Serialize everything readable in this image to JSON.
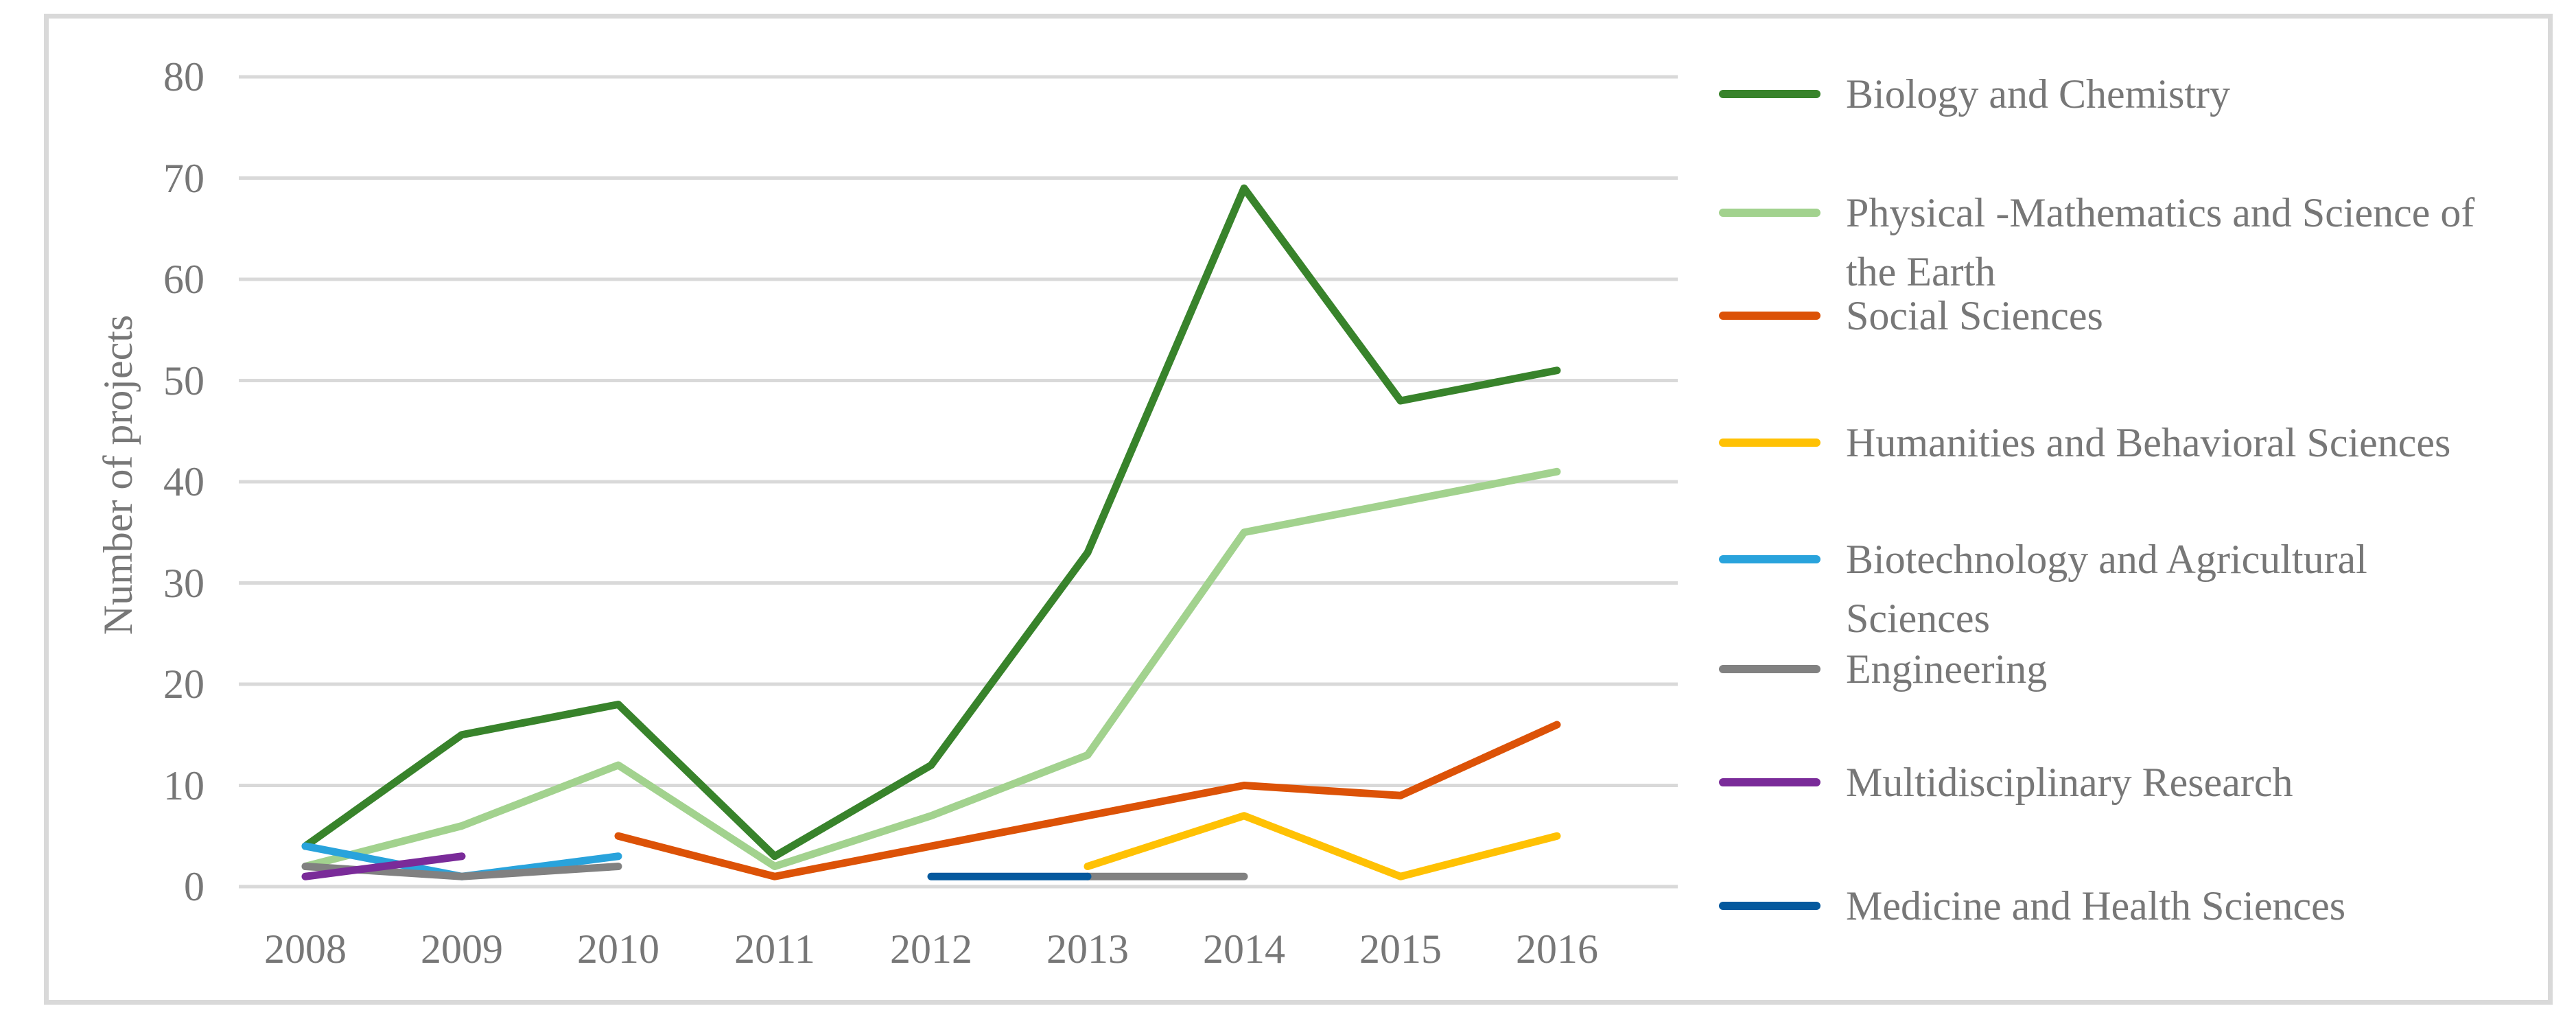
{
  "figure": {
    "background": "#FFFFFF",
    "border_color": "#D9D9D9",
    "gridline_color": "#D9D9D9",
    "text_color": "#777777"
  },
  "chart_data": {
    "type": "line",
    "title": "",
    "xlabel": "",
    "ylabel": "Number of projects",
    "ylim": [
      0,
      80
    ],
    "ytick_step": 10,
    "grid": "horizontal",
    "legend_position": "right",
    "categories": [
      "2008",
      "2009",
      "2010",
      "2011",
      "2012",
      "2013",
      "2014",
      "2015",
      "2016"
    ],
    "series": [
      {
        "name": "Biology and Chemistry",
        "name_lines": [
          "Biology and Chemistry"
        ],
        "color": "#38832B",
        "values": [
          4,
          15,
          18,
          3,
          12,
          33,
          69,
          48,
          51
        ]
      },
      {
        "name": "Physical -Mathematics and Science of the Earth",
        "name_lines": [
          "Physical -Mathematics and Science of",
          "the Earth"
        ],
        "color": "#A2D28E",
        "values": [
          2,
          6,
          12,
          2,
          7,
          13,
          35,
          38,
          41
        ]
      },
      {
        "name": "Social Sciences",
        "name_lines": [
          "Social Sciences"
        ],
        "color": "#DC5207",
        "values": [
          null,
          null,
          5,
          1,
          4,
          7,
          10,
          9,
          16
        ]
      },
      {
        "name": "Humanities and Behavioral Sciences",
        "name_lines": [
          "Humanities and Behavioral Sciences"
        ],
        "color": "#FFC103",
        "values": [
          null,
          null,
          null,
          null,
          null,
          2,
          7,
          1,
          5
        ]
      },
      {
        "name": "Biotechnology and Agricultural Sciences",
        "name_lines": [
          "Biotechnology and Agricultural",
          "Sciences"
        ],
        "color": "#29A3DC",
        "values": [
          4,
          1,
          3,
          null,
          null,
          null,
          null,
          null,
          null
        ]
      },
      {
        "name": "Engineering",
        "name_lines": [
          "Engineering"
        ],
        "color": "#818181",
        "values": [
          2,
          1,
          2,
          null,
          null,
          1,
          1,
          null,
          null
        ]
      },
      {
        "name": "Multidisciplinary Research",
        "name_lines": [
          "Multidisciplinary Research"
        ],
        "color": "#7A2B99",
        "values": [
          1,
          3,
          null,
          null,
          null,
          null,
          null,
          null,
          null
        ]
      },
      {
        "name": "Medicine and Health Sciences",
        "name_lines": [
          "Medicine and Health Sciences"
        ],
        "color": "#05599E",
        "values": [
          null,
          null,
          null,
          null,
          1,
          1,
          null,
          null,
          null
        ]
      }
    ]
  }
}
